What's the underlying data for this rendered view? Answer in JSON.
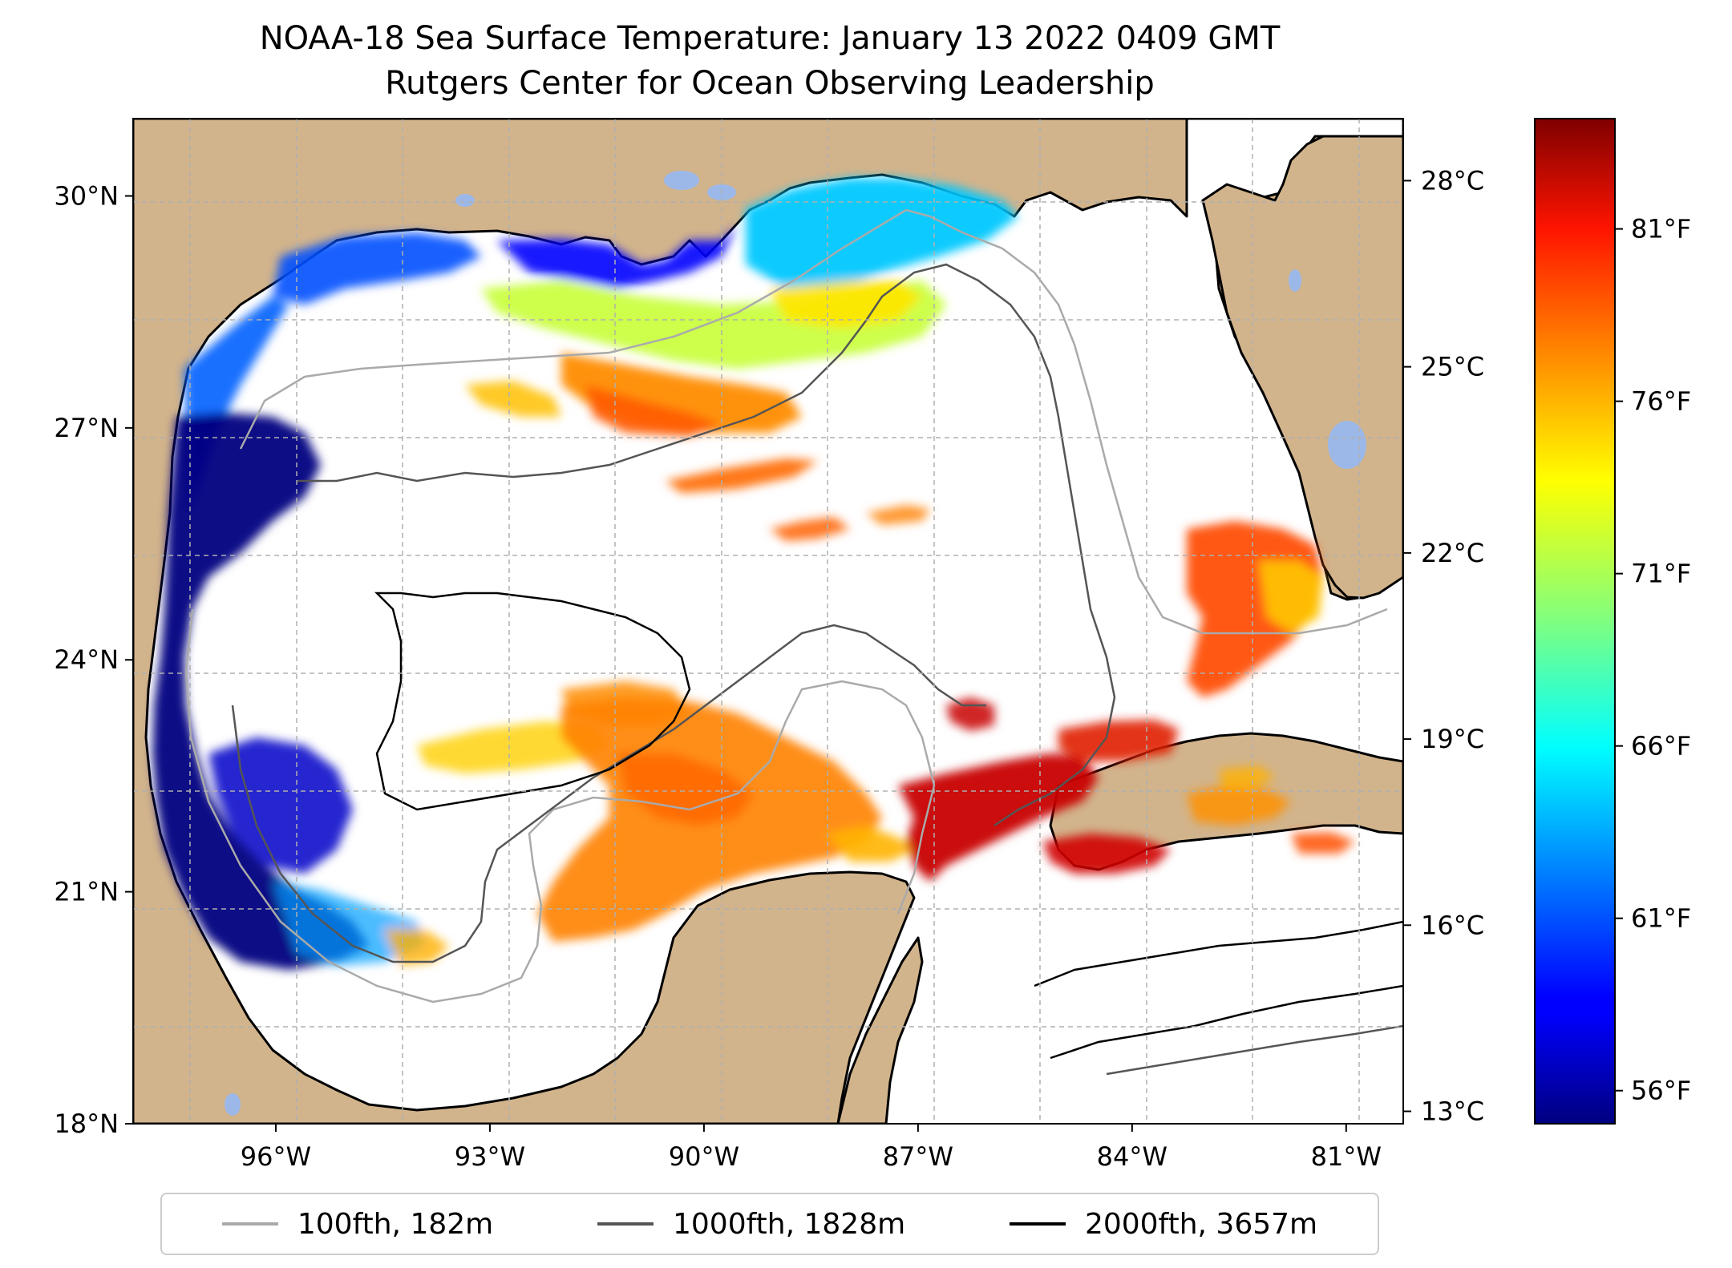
{
  "title": {
    "line1": "NOAA-18 Sea Surface Temperature: January 13 2022 0409 GMT",
    "line2": "Rutgers Center for Ocean Observing Leadership"
  },
  "map": {
    "lon_range": [
      -98.0,
      -80.2
    ],
    "lat_range": [
      18.0,
      31.0
    ],
    "lat_ticks": [
      {
        "value": 30,
        "label": "30°N"
      },
      {
        "value": 27,
        "label": "27°N"
      },
      {
        "value": 24,
        "label": "24°N"
      },
      {
        "value": 21,
        "label": "21°N"
      },
      {
        "value": 18,
        "label": "18°N"
      }
    ],
    "lon_ticks": [
      {
        "value": -96,
        "label": "96°W"
      },
      {
        "value": -93,
        "label": "93°W"
      },
      {
        "value": -90,
        "label": "90°W"
      },
      {
        "value": -87,
        "label": "87°W"
      },
      {
        "value": -84,
        "label": "84°W"
      },
      {
        "value": -81,
        "label": "81°W"
      }
    ],
    "grid": true,
    "colors": {
      "land": "#d2b48c",
      "water": "#ffffff",
      "lakes": "#9cb8e8",
      "grid": "#b0b0b0"
    }
  },
  "colorbar": {
    "colormap": "jet",
    "range_c": [
      12.8,
      29.0
    ],
    "celsius_ticks": [
      {
        "value": 28,
        "label": "28°C"
      },
      {
        "value": 25,
        "label": "25°C"
      },
      {
        "value": 22,
        "label": "22°C"
      },
      {
        "value": 19,
        "label": "19°C"
      },
      {
        "value": 16,
        "label": "16°C"
      },
      {
        "value": 13,
        "label": "13°C"
      }
    ],
    "fahrenheit_ticks": [
      {
        "value": 81,
        "label": "81°F"
      },
      {
        "value": 76,
        "label": "76°F"
      },
      {
        "value": 71,
        "label": "71°F"
      },
      {
        "value": 66,
        "label": "66°F"
      },
      {
        "value": 61,
        "label": "61°F"
      },
      {
        "value": 56,
        "label": "56°F"
      }
    ]
  },
  "legend": {
    "placement": "bottom-center",
    "items": [
      {
        "label": "100fth, 182m",
        "color": "#aaaaaa"
      },
      {
        "label": "1000fth, 1828m",
        "color": "#555555"
      },
      {
        "label": "2000fth, 3657m",
        "color": "#000000"
      }
    ]
  }
}
